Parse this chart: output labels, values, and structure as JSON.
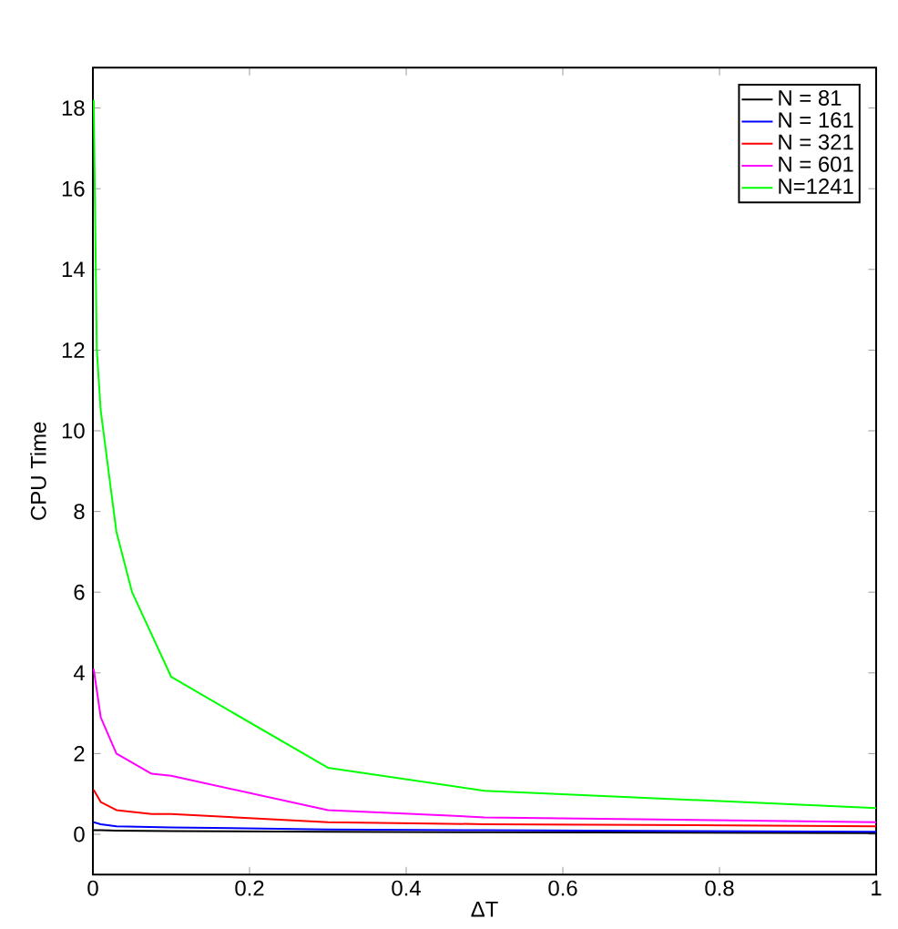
{
  "chart_data": {
    "type": "line",
    "xlabel": "ΔT",
    "ylabel": "CPU Time",
    "xlim": [
      0,
      1
    ],
    "ylim": [
      -1,
      19
    ],
    "xticks": [
      0,
      0.2,
      0.4,
      0.6,
      0.8,
      1
    ],
    "yticks": [
      0,
      2,
      4,
      6,
      8,
      10,
      12,
      14,
      16,
      18
    ],
    "legend": "top right",
    "grid": false,
    "series": [
      {
        "name": "N = 81",
        "color": "#000000",
        "x": [
          0.001,
          0.01,
          0.03,
          0.1,
          0.3,
          0.5,
          1
        ],
        "values": [
          0.1,
          0.1,
          0.09,
          0.08,
          0.06,
          0.05,
          0.03
        ]
      },
      {
        "name": "N = 161",
        "color": "#0000ff",
        "x": [
          0.001,
          0.01,
          0.03,
          0.1,
          0.3,
          0.5,
          1
        ],
        "values": [
          0.3,
          0.25,
          0.2,
          0.17,
          0.12,
          0.1,
          0.06
        ]
      },
      {
        "name": "N = 321",
        "color": "#ff0000",
        "x": [
          0.001,
          0.01,
          0.03,
          0.075,
          0.1,
          0.3,
          0.5,
          1
        ],
        "values": [
          1.1,
          0.8,
          0.6,
          0.5,
          0.5,
          0.3,
          0.25,
          0.2
        ]
      },
      {
        "name": "N = 601",
        "color": "#ff00ff",
        "x": [
          0.001,
          0.01,
          0.03,
          0.075,
          0.1,
          0.3,
          0.5,
          1
        ],
        "values": [
          4.1,
          2.9,
          2.0,
          1.5,
          1.45,
          0.6,
          0.42,
          0.3
        ]
      },
      {
        "name": "N=1241",
        "color": "#00ff00",
        "x": [
          0.001,
          0.005,
          0.01,
          0.03,
          0.05,
          0.1,
          0.3,
          0.5,
          1
        ],
        "values": [
          18.2,
          12.0,
          10.5,
          7.5,
          6.0,
          3.9,
          1.65,
          1.08,
          0.65
        ]
      }
    ]
  }
}
